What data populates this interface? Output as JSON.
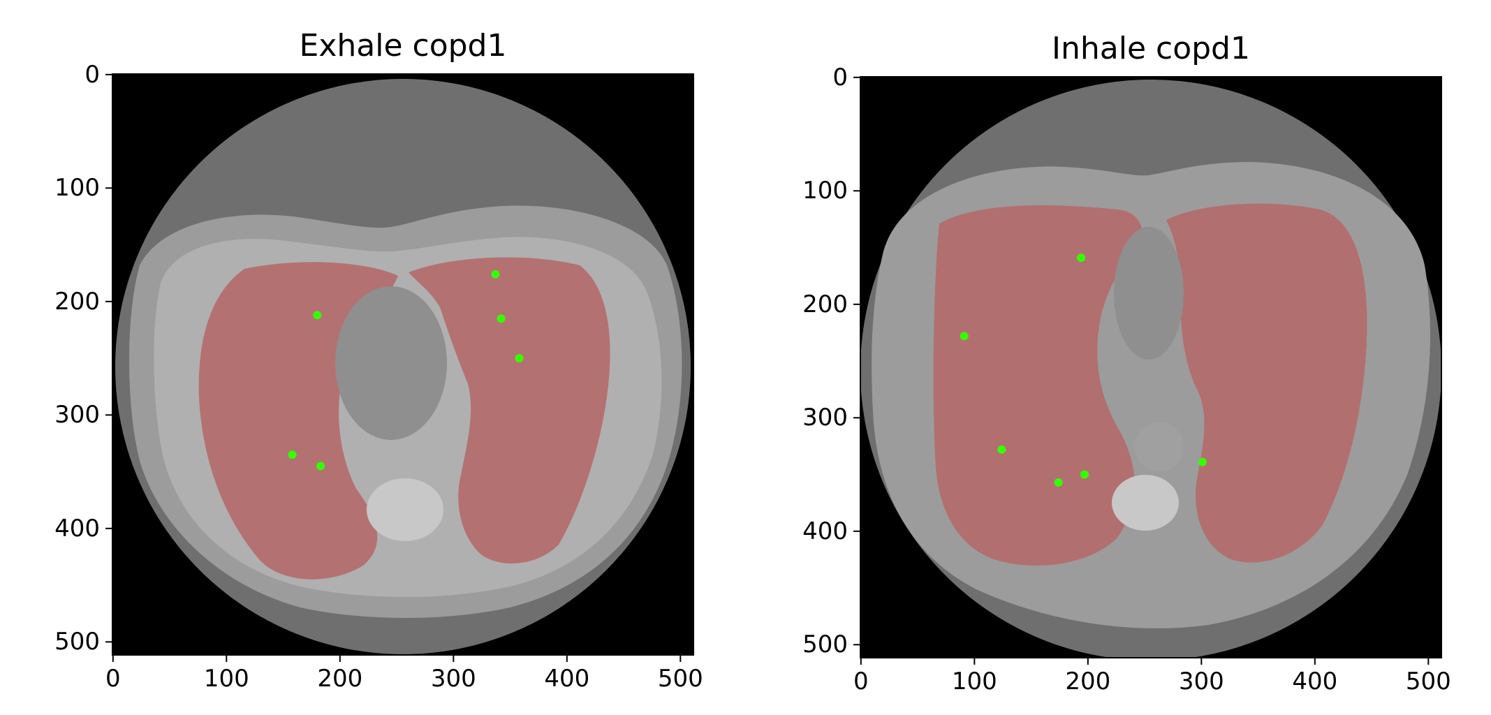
{
  "figure": {
    "panels": [
      {
        "title": "Exhale copd1",
        "xticks": [
          "0",
          "100",
          "200",
          "300",
          "400",
          "500"
        ],
        "yticks": [
          "0",
          "100",
          "200",
          "300",
          "400",
          "500"
        ],
        "landmarks": [
          [
            337,
            176
          ],
          [
            180,
            212
          ],
          [
            342,
            215
          ],
          [
            358,
            250
          ],
          [
            158,
            335
          ],
          [
            183,
            345
          ]
        ]
      },
      {
        "title": "Inhale copd1",
        "xticks": [
          "0",
          "100",
          "200",
          "300",
          "400",
          "500"
        ],
        "yticks": [
          "0",
          "100",
          "200",
          "300",
          "400",
          "500"
        ],
        "landmarks": [
          [
            194,
            159
          ],
          [
            91,
            228
          ],
          [
            124,
            328
          ],
          [
            197,
            350
          ],
          [
            174,
            357
          ],
          [
            301,
            339
          ]
        ]
      }
    ],
    "colors": {
      "background": "#000000",
      "body": "#8c8c8c",
      "lung_overlay": "#b56a6a",
      "landmark": "#33ff00"
    }
  }
}
